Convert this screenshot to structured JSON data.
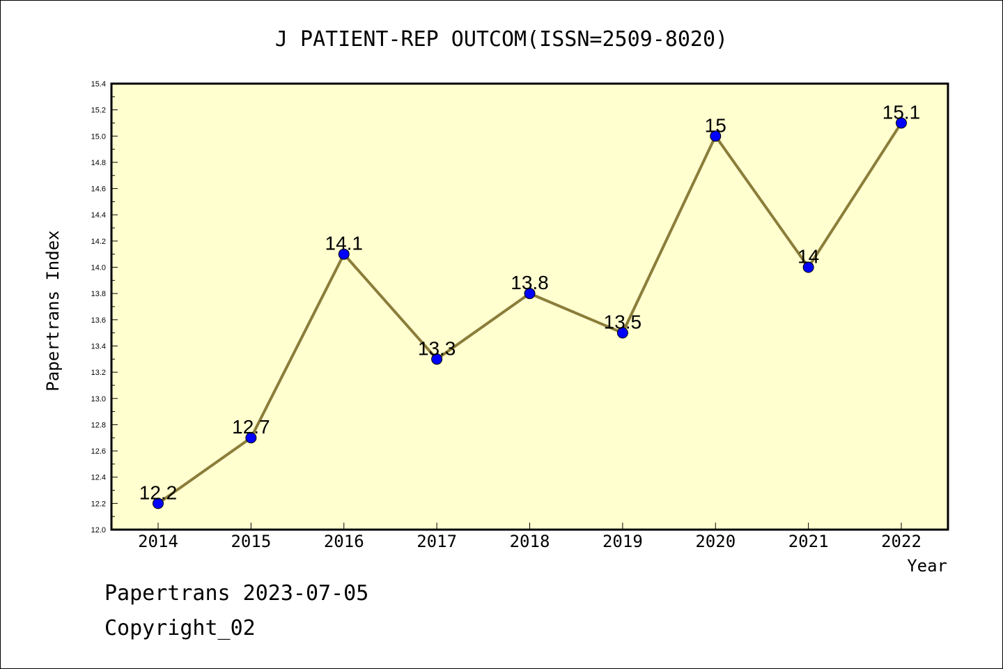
{
  "chart_data": {
    "type": "line",
    "title": "J PATIENT-REP OUTCOM(ISSN=2509-8020)",
    "xlabel": "Year",
    "ylabel": "Papertrans Index",
    "categories": [
      "2014",
      "2015",
      "2016",
      "2017",
      "2018",
      "2019",
      "2020",
      "2021",
      "2022"
    ],
    "series": [
      {
        "values": [
          12.2,
          12.7,
          14.1,
          13.3,
          13.8,
          13.5,
          15.0,
          14.0,
          15.1
        ],
        "data_labels": [
          "12.2",
          "12.7",
          "14.1",
          "13.3",
          "13.8",
          "13.5",
          "15",
          "14",
          "15.1"
        ]
      }
    ],
    "ylim": [
      12.0,
      15.4
    ],
    "y_ticks": [
      "12.0",
      "12.2",
      "12.4",
      "12.6",
      "12.8",
      "13.0",
      "13.2",
      "13.4",
      "13.6",
      "13.8",
      "14.0",
      "14.2",
      "14.4",
      "14.6",
      "14.8",
      "15.0",
      "15.2",
      "15.4"
    ],
    "grid": false,
    "colors": {
      "plot_background": "#ffffd0",
      "line": "#8b7d3a",
      "marker": "#0000ff"
    }
  },
  "footer": {
    "date_line": "Papertrans 2023-07-05",
    "copyright": "Copyright_02"
  }
}
